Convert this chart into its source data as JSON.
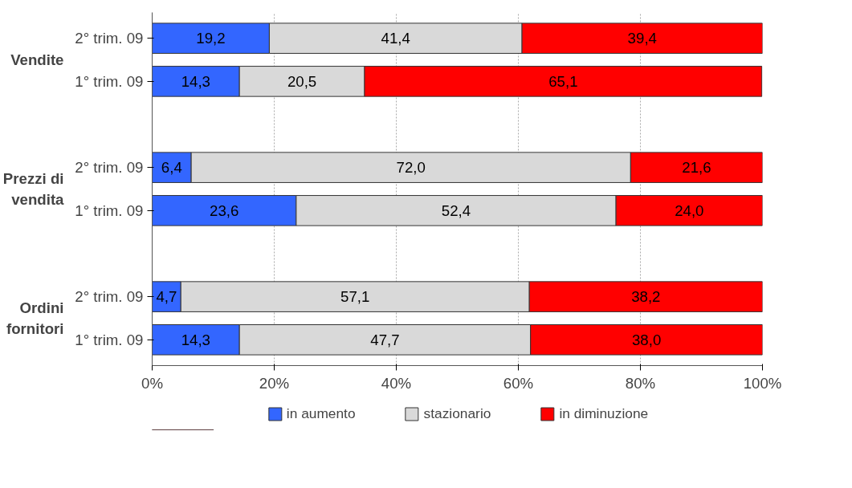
{
  "chart_data": {
    "type": "bar",
    "orientation": "horizontal",
    "stacked": true,
    "categories": [
      "2° trim. 09",
      "1° trim. 09",
      null,
      "2° trim. 09",
      "1° trim. 09",
      null,
      "2° trim. 09",
      "1° trim. 09"
    ],
    "series": [
      {
        "name": "in aumento",
        "color": "#3366ff",
        "values": [
          19.2,
          14.3,
          null,
          6.4,
          23.6,
          null,
          4.7,
          14.3
        ],
        "value_labels": [
          "19,2",
          "14,3",
          null,
          "6,4",
          "23,6",
          null,
          "4,7",
          "14,3"
        ]
      },
      {
        "name": "stazionario",
        "color": "#d9d9d9",
        "values": [
          41.4,
          20.5,
          null,
          72.0,
          52.4,
          null,
          57.1,
          47.7
        ],
        "value_labels": [
          "41,4",
          "20,5",
          null,
          "72,0",
          "52,4",
          null,
          "57,1",
          "47,7"
        ]
      },
      {
        "name": "in diminuzione",
        "color": "#ff0000",
        "values": [
          39.4,
          65.1,
          null,
          21.6,
          24.0,
          null,
          38.2,
          38.0
        ],
        "value_labels": [
          "39,4",
          "65,1",
          null,
          "21,6",
          "24,0",
          null,
          "38,2",
          "38,0"
        ]
      }
    ],
    "annotations": [
      "Vendite",
      "Prezzi di\nvendita",
      "Ordini\nfornitori"
    ],
    "xlim": [
      0,
      100
    ],
    "xticks": [
      {
        "value": 0,
        "label": "0%"
      },
      {
        "value": 20,
        "label": "20%"
      },
      {
        "value": 40,
        "label": "40%"
      },
      {
        "value": 60,
        "label": "60%"
      },
      {
        "value": 80,
        "label": "80%"
      },
      {
        "value": 100,
        "label": "100%"
      }
    ],
    "grid": "x",
    "legend": "bottom"
  }
}
